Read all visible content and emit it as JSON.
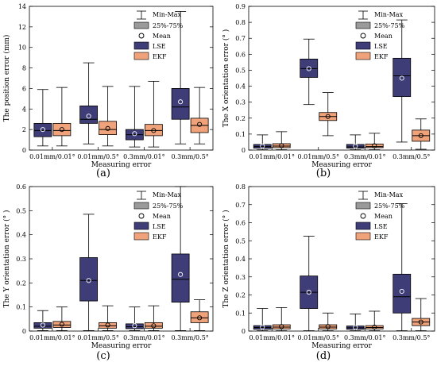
{
  "figure": {
    "legend": {
      "minmax": "Min-Max",
      "iqr": "25%-75%",
      "mean": "Mean",
      "lse": "LSE",
      "ekf": "EKF"
    },
    "colors": {
      "lse": "#3f3d78",
      "ekf": "#f0a37a",
      "whisker": "#000000",
      "axis": "#000000"
    }
  },
  "chart_data": [
    {
      "type": "box",
      "panel_label": "(a)",
      "ylabel": "The position error (mm)",
      "xlabel": "Measuring error",
      "categories": [
        "0.01mm/0.01°",
        "0.01mm/0.5°",
        "0.3mm/0.01°",
        "0.3mm/0.5°"
      ],
      "ylim": [
        0,
        14
      ],
      "yticks": [
        0,
        2,
        4,
        6,
        8,
        10,
        12,
        14
      ],
      "ytick_labels": [
        "0",
        "2",
        "4",
        "6",
        "8",
        "10",
        "12",
        "14"
      ],
      "series": [
        {
          "name": "LSE",
          "boxes": [
            {
              "min": 0.4,
              "q1": 1.3,
              "median": 1.9,
              "q3": 2.6,
              "max": 5.9,
              "mean": 2.0
            },
            {
              "min": 0.6,
              "q1": 2.6,
              "median": 3.0,
              "q3": 4.3,
              "max": 8.5,
              "mean": 3.3
            },
            {
              "min": 0.3,
              "q1": 1.0,
              "median": 1.5,
              "q3": 2.0,
              "max": 6.2,
              "mean": 1.6
            },
            {
              "min": 0.6,
              "q1": 3.0,
              "median": 4.2,
              "q3": 6.0,
              "max": 13.5,
              "mean": 4.7
            }
          ]
        },
        {
          "name": "EKF",
          "boxes": [
            {
              "min": 0.4,
              "q1": 1.4,
              "median": 1.9,
              "q3": 2.6,
              "max": 6.1,
              "mean": 2.0
            },
            {
              "min": 0.4,
              "q1": 1.5,
              "median": 2.0,
              "q3": 2.8,
              "max": 6.2,
              "mean": 2.1
            },
            {
              "min": 0.3,
              "q1": 1.4,
              "median": 1.9,
              "q3": 2.5,
              "max": 6.7,
              "mean": 1.9
            },
            {
              "min": 0.6,
              "q1": 1.7,
              "median": 2.4,
              "q3": 3.1,
              "max": 6.1,
              "mean": 2.5
            }
          ]
        }
      ]
    },
    {
      "type": "box",
      "panel_label": "(b)",
      "ylabel": "The X orientation error (° )",
      "xlabel": "Measuring error",
      "categories": [
        "0.01mm/0.01°",
        "0.01mm/0.5°",
        "0.3mm/0.01°",
        "0.3mm/0.5°"
      ],
      "ylim": [
        0,
        0.9
      ],
      "yticks": [
        0,
        0.1,
        0.2,
        0.3,
        0.4,
        0.5,
        0.6,
        0.7,
        0.8,
        0.9
      ],
      "ytick_labels": [
        "0",
        "0.1",
        "0.2",
        "0.3",
        "0.4",
        "0.5",
        "0.6",
        "0.7",
        "0.8",
        "0.9"
      ],
      "series": [
        {
          "name": "LSE",
          "boxes": [
            {
              "min": 0.002,
              "q1": 0.012,
              "median": 0.022,
              "q3": 0.035,
              "max": 0.095,
              "mean": 0.025
            },
            {
              "min": 0.285,
              "q1": 0.455,
              "median": 0.51,
              "q3": 0.57,
              "max": 0.695,
              "mean": 0.51
            },
            {
              "min": 0.002,
              "q1": 0.012,
              "median": 0.02,
              "q3": 0.035,
              "max": 0.095,
              "mean": 0.025
            },
            {
              "min": 0.05,
              "q1": 0.335,
              "median": 0.465,
              "q3": 0.575,
              "max": 0.815,
              "mean": 0.45
            }
          ]
        },
        {
          "name": "EKF",
          "boxes": [
            {
              "min": 0.002,
              "q1": 0.015,
              "median": 0.025,
              "q3": 0.04,
              "max": 0.115,
              "mean": 0.028
            },
            {
              "min": 0.09,
              "q1": 0.185,
              "median": 0.21,
              "q3": 0.235,
              "max": 0.36,
              "mean": 0.21
            },
            {
              "min": 0.002,
              "q1": 0.015,
              "median": 0.022,
              "q3": 0.038,
              "max": 0.105,
              "mean": 0.027
            },
            {
              "min": 0.005,
              "q1": 0.055,
              "median": 0.09,
              "q3": 0.125,
              "max": 0.195,
              "mean": 0.09
            }
          ]
        }
      ]
    },
    {
      "type": "box",
      "panel_label": "(c)",
      "ylabel": "The Y orientation error (° )",
      "xlabel": "Measuring error",
      "categories": [
        "0.01mm/0.01°",
        "0.01mm/0.5°",
        "0.3mm/0.01°",
        "0.3mm/0.5°"
      ],
      "ylim": [
        0,
        0.6
      ],
      "yticks": [
        0,
        0.1,
        0.2,
        0.3,
        0.4,
        0.5,
        0.6
      ],
      "ytick_labels": [
        "0",
        "0.1",
        "0.2",
        "0.3",
        "0.4",
        "0.5",
        "0.6"
      ],
      "series": [
        {
          "name": "LSE",
          "boxes": [
            {
              "min": 0.002,
              "q1": 0.012,
              "median": 0.02,
              "q3": 0.035,
              "max": 0.085,
              "mean": 0.025
            },
            {
              "min": 0.002,
              "q1": 0.125,
              "median": 0.21,
              "q3": 0.305,
              "max": 0.485,
              "mean": 0.21
            },
            {
              "min": 0.002,
              "q1": 0.01,
              "median": 0.018,
              "q3": 0.03,
              "max": 0.1,
              "mean": 0.022
            },
            {
              "min": 0.002,
              "q1": 0.12,
              "median": 0.215,
              "q3": 0.32,
              "max": 0.6,
              "mean": 0.235
            }
          ]
        },
        {
          "name": "EKF",
          "boxes": [
            {
              "min": 0.002,
              "q1": 0.015,
              "median": 0.025,
              "q3": 0.04,
              "max": 0.1,
              "mean": 0.028
            },
            {
              "min": 0.002,
              "q1": 0.012,
              "median": 0.022,
              "q3": 0.035,
              "max": 0.105,
              "mean": 0.025
            },
            {
              "min": 0.002,
              "q1": 0.012,
              "median": 0.02,
              "q3": 0.035,
              "max": 0.105,
              "mean": 0.022
            },
            {
              "min": 0.002,
              "q1": 0.035,
              "median": 0.055,
              "q3": 0.08,
              "max": 0.13,
              "mean": 0.055
            }
          ]
        }
      ]
    },
    {
      "type": "box",
      "panel_label": "(d)",
      "ylabel": "The Z orientation error (° )",
      "xlabel": "Measuring error",
      "categories": [
        "0.01mm/0.01°",
        "0.01mm/0.5°",
        "0.3mm/0.01°",
        "0.3mm/0.5°"
      ],
      "ylim": [
        0,
        0.8
      ],
      "yticks": [
        0,
        0.1,
        0.2,
        0.3,
        0.4,
        0.5,
        0.6,
        0.7,
        0.8
      ],
      "ytick_labels": [
        "0",
        "0.1",
        "0.2",
        "0.3",
        "0.4",
        "0.5",
        "0.6",
        "0.7",
        "0.8"
      ],
      "series": [
        {
          "name": "LSE",
          "boxes": [
            {
              "min": 0.002,
              "q1": 0.01,
              "median": 0.02,
              "q3": 0.03,
              "max": 0.125,
              "mean": 0.022
            },
            {
              "min": 0.002,
              "q1": 0.125,
              "median": 0.215,
              "q3": 0.305,
              "max": 0.525,
              "mean": 0.215
            },
            {
              "min": 0.002,
              "q1": 0.01,
              "median": 0.018,
              "q3": 0.028,
              "max": 0.095,
              "mean": 0.02
            },
            {
              "min": 0.002,
              "q1": 0.1,
              "median": 0.19,
              "q3": 0.315,
              "max": 0.705,
              "mean": 0.22
            }
          ]
        },
        {
          "name": "EKF",
          "boxes": [
            {
              "min": 0.002,
              "q1": 0.012,
              "median": 0.022,
              "q3": 0.035,
              "max": 0.13,
              "mean": 0.025
            },
            {
              "min": 0.002,
              "q1": 0.012,
              "median": 0.022,
              "q3": 0.035,
              "max": 0.1,
              "mean": 0.025
            },
            {
              "min": 0.002,
              "q1": 0.012,
              "median": 0.02,
              "q3": 0.03,
              "max": 0.11,
              "mean": 0.022
            },
            {
              "min": 0.002,
              "q1": 0.03,
              "median": 0.05,
              "q3": 0.07,
              "max": 0.18,
              "mean": 0.05
            }
          ]
        }
      ]
    }
  ]
}
